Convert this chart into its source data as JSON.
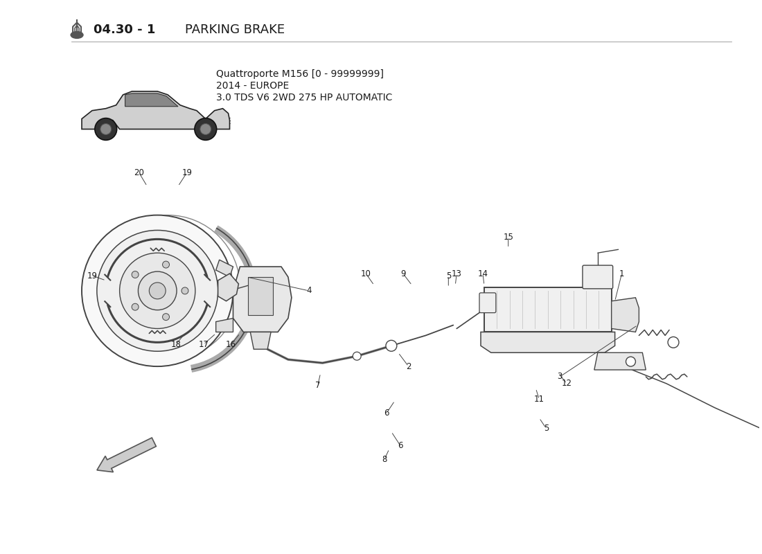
{
  "title_number": "04.30 - 1",
  "title_text": "PARKING BRAKE",
  "car_info_line1": "Quattroporte M156 [0 - 99999999]",
  "car_info_line2": "2014 - EUROPE",
  "car_info_line3": "3.0 TDS V6 2WD 275 HP AUTOMATIC",
  "bg_color": "#ffffff",
  "text_color": "#1a1a1a",
  "line_color": "#444444",
  "fig_width": 11.0,
  "fig_height": 8.0,
  "dpi": 100
}
